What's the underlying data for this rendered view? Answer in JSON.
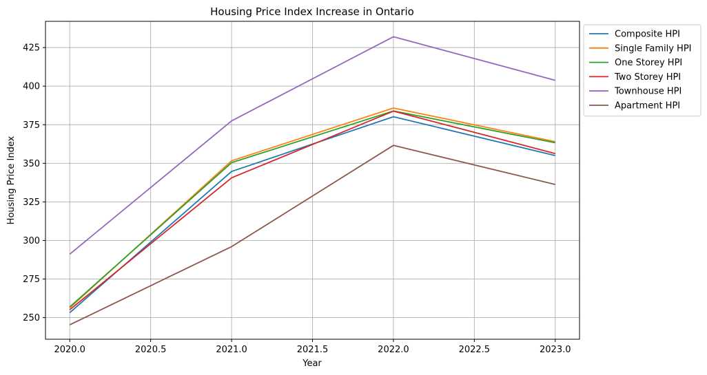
{
  "chart_data": {
    "type": "line",
    "title": "Housing Price Index Increase in Ontario",
    "xlabel": "Year",
    "ylabel": "Housing Price Index",
    "x": [
      2020,
      2021,
      2022,
      2023
    ],
    "xlim": [
      2019.85,
      2023.15
    ],
    "ylim": [
      236,
      442
    ],
    "xticks": [
      2020.0,
      2020.5,
      2021.0,
      2021.5,
      2022.0,
      2022.5,
      2023.0
    ],
    "xtick_labels": [
      "2020.0",
      "2020.5",
      "2021.0",
      "2021.5",
      "2022.0",
      "2022.5",
      "2023.0"
    ],
    "yticks": [
      250,
      275,
      300,
      325,
      350,
      375,
      400,
      425
    ],
    "ytick_labels": [
      "250",
      "275",
      "300",
      "325",
      "350",
      "375",
      "400",
      "425"
    ],
    "grid": true,
    "legend_position": "outside upper-right",
    "series": [
      {
        "name": "Composite HPI",
        "color": "#1f77b4",
        "values": [
          253.2,
          344.7,
          380.2,
          355.0
        ]
      },
      {
        "name": "Single Family HPI",
        "color": "#ff7f0e",
        "values": [
          256.3,
          351.6,
          385.8,
          364.0
        ]
      },
      {
        "name": "One Storey HPI",
        "color": "#2ca02c",
        "values": [
          256.9,
          350.4,
          383.9,
          363.3
        ]
      },
      {
        "name": "Two Storey HPI",
        "color": "#d62728",
        "values": [
          255.1,
          340.6,
          383.8,
          356.3
        ]
      },
      {
        "name": "Townhouse HPI",
        "color": "#9467bd",
        "values": [
          291.1,
          377.5,
          432.0,
          403.8
        ]
      },
      {
        "name": "Apartment HPI",
        "color": "#8c564b",
        "values": [
          245.3,
          296.0,
          361.6,
          336.3
        ]
      }
    ]
  }
}
